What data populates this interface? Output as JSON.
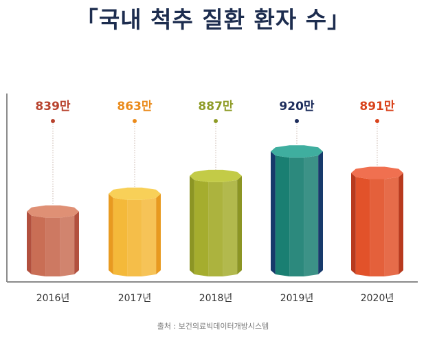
{
  "title": "「국내 척추 질환 환자 수」",
  "source": "출처 : 보건의료빅데이터개방시스템",
  "colors": {
    "title": "#1d2d4f",
    "axis": "#8a8a8a"
  },
  "chart_data": {
    "type": "bar",
    "title": "「국내 척추 질환 환자 수」",
    "categories": [
      "2016년",
      "2017년",
      "2018년",
      "2019년",
      "2020년"
    ],
    "values": [
      839,
      863,
      887,
      920,
      891
    ],
    "value_labels": [
      "839만",
      "863만",
      "887만",
      "920만",
      "891만"
    ],
    "unit": "만",
    "xlabel": "",
    "ylabel": "",
    "grid": false,
    "legend": "none",
    "bar_colors": [
      {
        "front": "#c96e55",
        "side": "#b2503e",
        "top": "#df9075",
        "label": "#b8432e"
      },
      {
        "front": "#f4b93a",
        "side": "#e89a20",
        "top": "#f8d058",
        "label": "#ea8a1a"
      },
      {
        "front": "#a5ad2e",
        "side": "#8c9524",
        "top": "#c3cb47",
        "label": "#8e9b26"
      },
      {
        "front": "#1a7f72",
        "side": "#173a6b",
        "top": "#3fae9f",
        "label": "#1d2d5c"
      },
      {
        "front": "#e2522a",
        "side": "#b83a1e",
        "top": "#f07050",
        "label": "#d9431c"
      }
    ]
  }
}
